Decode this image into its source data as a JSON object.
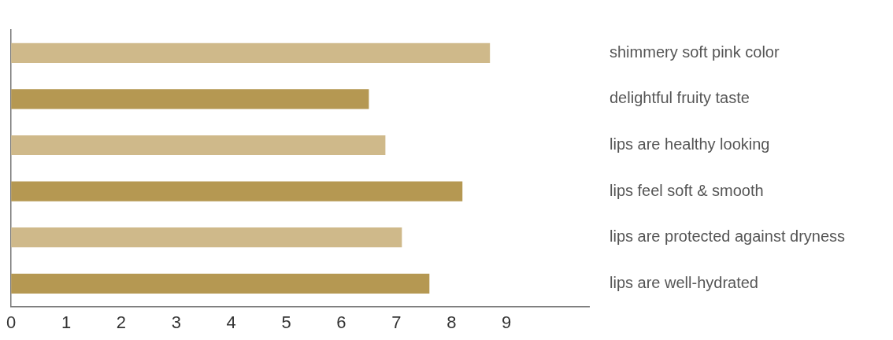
{
  "chart_data": {
    "type": "bar",
    "orientation": "horizontal",
    "categories": [
      "shimmery soft pink color",
      "delightful fruity taste",
      "lips are healthy looking",
      "lips feel soft & smooth",
      "lips are protected against dryness",
      "lips are well-hydrated"
    ],
    "values": [
      8.7,
      6.5,
      6.8,
      8.2,
      7.1,
      7.6
    ],
    "colors": [
      "#cfb98a",
      "#b59852",
      "#cfb98a",
      "#b59852",
      "#cfb98a",
      "#b59852"
    ],
    "xlim": [
      0,
      10.5
    ],
    "xticks": [
      0,
      1,
      2,
      3,
      4,
      5,
      6,
      7,
      8,
      9
    ],
    "grid": false,
    "legend": false
  }
}
